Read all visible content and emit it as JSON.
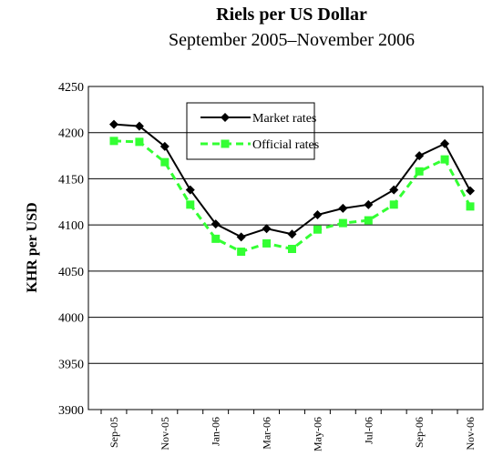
{
  "chart_data": {
    "type": "line",
    "title": "Riels per US Dollar",
    "subtitle": "September 2005–November 2006",
    "y_label": "KHR per USD",
    "categories": [
      "Sep-05",
      null,
      "Nov-05",
      null,
      "Jan-06",
      null,
      "Mar-06",
      null,
      "May-06",
      null,
      "Jul-06",
      null,
      "Sep-06",
      null,
      "Nov-06"
    ],
    "series": [
      {
        "name": "Market rates",
        "color": "#000000",
        "marker": "diamond",
        "dashed": false,
        "values": [
          4209,
          4207,
          4185,
          4138,
          4101,
          4087,
          4096,
          4090,
          4111,
          4118,
          4122,
          4138,
          4175,
          4188,
          4137
        ]
      },
      {
        "name": "Official rates",
        "color": "#33ff33",
        "marker": "square",
        "dashed": true,
        "values": [
          4191,
          4190,
          4168,
          4122,
          4085,
          4071,
          4080,
          4074,
          4095,
          4102,
          4105,
          4122,
          4158,
          4171,
          4120
        ]
      }
    ],
    "ylim": [
      3900,
      4250
    ],
    "yticks": [
      3900,
      3950,
      4000,
      4050,
      4100,
      4150,
      4200,
      4250
    ],
    "grid": true
  }
}
